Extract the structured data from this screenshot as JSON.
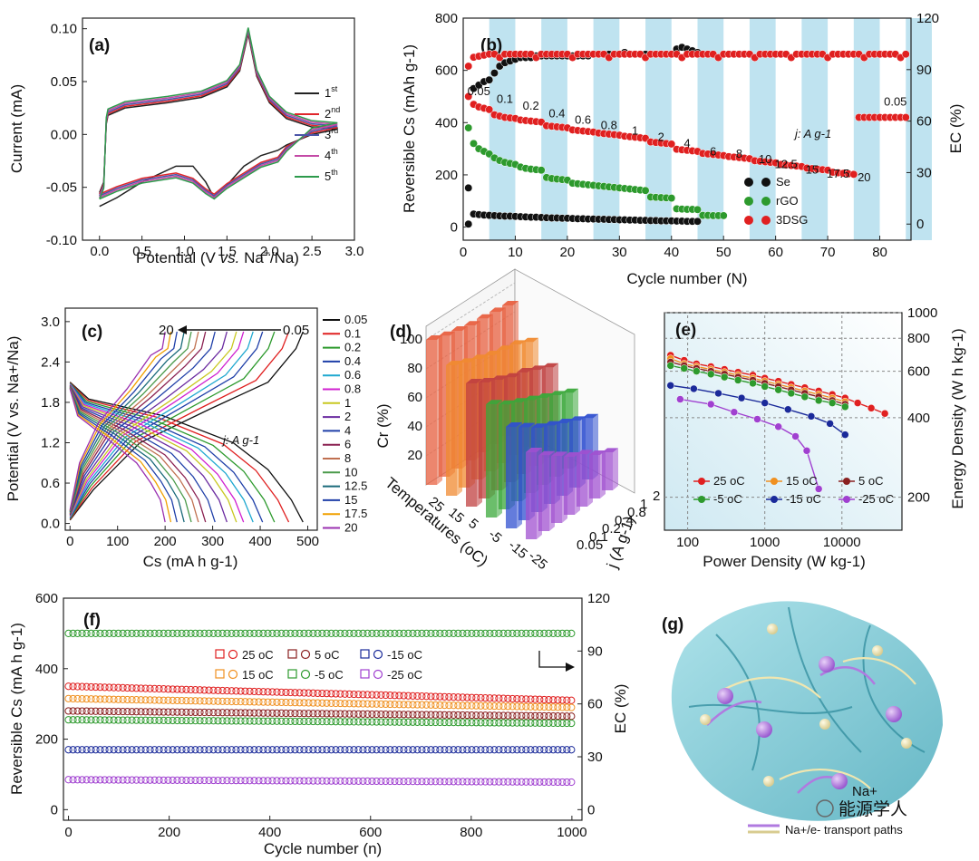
{
  "chart_data": [
    {
      "id": "a",
      "type": "line",
      "panel_label": "(a)",
      "xlabel": "Potential (V vs. Na+/Na)",
      "xlabel_parts": [
        "Potential (V ",
        "vs.",
        " Na",
        "+",
        "/Na)"
      ],
      "ylabel": "Current (mA)",
      "xlim": [
        -0.2,
        3.0
      ],
      "ylim": [
        -0.1,
        0.11
      ],
      "xticks": [
        "0.0",
        "0.5",
        "1.0",
        "1.5",
        "2.0",
        "2.5",
        "3.0"
      ],
      "yticks": [
        "-0.10",
        "-0.05",
        "0.00",
        "0.05",
        "0.10"
      ],
      "legend": [
        {
          "label": "1",
          "sup": "st",
          "color": "#222222"
        },
        {
          "label": "2",
          "sup": "nd",
          "color": "#e0262b"
        },
        {
          "label": "3",
          "sup": "rd",
          "color": "#4a55a8"
        },
        {
          "label": "4",
          "sup": "th",
          "color": "#c44aa6"
        },
        {
          "label": "5",
          "sup": "th",
          "color": "#2d9a4c"
        }
      ]
    },
    {
      "id": "b",
      "type": "scatter",
      "panel_label": "(b)",
      "xlabel": "Cycle number (N)",
      "ylabel": "Reversible Cs (mAh g-1)",
      "y2label": "EC (%)",
      "xlim": [
        0,
        86
      ],
      "ylim": [
        -50,
        800
      ],
      "y2lim": [
        -9.375,
        120
      ],
      "xticks": [
        "0",
        "10",
        "20",
        "30",
        "40",
        "50",
        "60",
        "70",
        "80"
      ],
      "yticks": [
        "0",
        "200",
        "400",
        "600",
        "800"
      ],
      "y2ticks": [
        "0",
        "30",
        "60",
        "90",
        "120"
      ],
      "rate_labels": [
        "0.05",
        "0.1",
        "0.2",
        "0.4",
        "0.6",
        "0.8",
        "1",
        "2",
        "4",
        "6",
        "8",
        "10",
        "12.5",
        "15",
        "17.5",
        "20",
        "0.05"
      ],
      "unit_note": "j: A g-1",
      "legend": [
        {
          "label": "Se",
          "color": "#111111"
        },
        {
          "label": "rGO",
          "color": "#2d9a2d"
        },
        {
          "label": "3DSG",
          "color": "#e02020"
        }
      ],
      "series": [
        {
          "name": "3DSG",
          "values": [
            500,
            470,
            460,
            455,
            450,
            430,
            425,
            420,
            418,
            416,
            410,
            408,
            406,
            404,
            402,
            388,
            386,
            384,
            382,
            380,
            372,
            370,
            368,
            366,
            364,
            360,
            358,
            356,
            354,
            352,
            348,
            346,
            344,
            342,
            340,
            326,
            324,
            322,
            320,
            318,
            298,
            296,
            294,
            292,
            290,
            282,
            280,
            278,
            276,
            274,
            270,
            268,
            266,
            264,
            262,
            254,
            252,
            250,
            248,
            246,
            240,
            238,
            236,
            234,
            232,
            226,
            224,
            222,
            220,
            218,
            210,
            208,
            206,
            204,
            202,
            420,
            420,
            420,
            420,
            420,
            420,
            420,
            420,
            420,
            420
          ]
        },
        {
          "name": "rGO",
          "values": [
            380,
            320,
            300,
            290,
            280,
            265,
            255,
            248,
            244,
            240,
            230,
            225,
            222,
            220,
            218,
            190,
            186,
            184,
            182,
            180,
            168,
            166,
            164,
            162,
            160,
            158,
            156,
            154,
            152,
            150,
            148,
            146,
            144,
            142,
            140,
            115,
            114,
            113,
            112,
            111,
            70,
            69,
            68,
            68,
            67,
            45,
            45,
            44,
            44,
            44
          ]
        },
        {
          "name": "Se",
          "values": [
            150,
            50,
            48,
            46,
            45,
            44,
            43,
            42,
            42,
            41,
            40,
            39,
            38,
            38,
            37,
            36,
            35,
            35,
            34,
            34,
            33,
            32,
            32,
            31,
            31,
            30,
            30,
            29,
            29,
            28,
            28,
            27,
            27,
            26,
            26,
            25,
            25,
            24,
            24,
            24,
            23,
            23,
            22,
            22,
            22
          ]
        },
        {
          "name": "EC_Se",
          "values": [
            0,
            79,
            81,
            83,
            84,
            88,
            92,
            94,
            95,
            96,
            97,
            97,
            97,
            98,
            98,
            98,
            98,
            98,
            98,
            98,
            98,
            98,
            98,
            98,
            99,
            99,
            99,
            99,
            99,
            99,
            100,
            99,
            99,
            99,
            99,
            99,
            99,
            99,
            99,
            99,
            102,
            103,
            102,
            101,
            100
          ]
        }
      ]
    },
    {
      "id": "c",
      "type": "line",
      "panel_label": "(c)",
      "xlabel": "Cs (mA h g-1)",
      "ylabel": "Potential (V vs. Na+/Na)",
      "xlim": [
        -10,
        520
      ],
      "ylim": [
        -0.1,
        3.2
      ],
      "xticks": [
        "0",
        "100",
        "200",
        "300",
        "400",
        "500"
      ],
      "yticks": [
        "0.0",
        "0.6",
        "1.2",
        "1.8",
        "2.4",
        "3.0"
      ],
      "arrow_from": "0.05",
      "arrow_to": "20",
      "unit_note": "j: A g-1",
      "series": [
        {
          "name": "0.05",
          "capacity": 490,
          "color": "#111111"
        },
        {
          "name": "0.1",
          "capacity": 460,
          "color": "#e02020"
        },
        {
          "name": "0.2",
          "capacity": 430,
          "color": "#2d9a2d"
        },
        {
          "name": "0.4",
          "capacity": 405,
          "color": "#1f3fa8"
        },
        {
          "name": "0.6",
          "capacity": 385,
          "color": "#1fa8d0"
        },
        {
          "name": "0.8",
          "capacity": 365,
          "color": "#d020d0"
        },
        {
          "name": "1",
          "capacity": 350,
          "color": "#c8c820"
        },
        {
          "name": "2",
          "capacity": 330,
          "color": "#6a2aa0"
        },
        {
          "name": "4",
          "capacity": 305,
          "color": "#1f3fa8"
        },
        {
          "name": "6",
          "capacity": 285,
          "color": "#8a2050"
        },
        {
          "name": "8",
          "capacity": 270,
          "color": "#c07050"
        },
        {
          "name": "10",
          "capacity": 255,
          "color": "#4a9a4a"
        },
        {
          "name": "12.5",
          "capacity": 240,
          "color": "#1a6a7a"
        },
        {
          "name": "15",
          "capacity": 225,
          "color": "#1f3fa8"
        },
        {
          "name": "17.5",
          "capacity": 212,
          "color": "#f0a000"
        },
        {
          "name": "20",
          "capacity": 200,
          "color": "#9a30b0"
        }
      ]
    },
    {
      "id": "d",
      "type": "bar",
      "panel_label": "(d)",
      "zlabel": "Cr (%)",
      "xlabel": "Temperatures (oC)",
      "ylabel": "j (A g-1)",
      "zticks": [
        "20",
        "40",
        "60",
        "80",
        "100"
      ],
      "temperatures": [
        "25",
        "15",
        "5",
        "-5",
        "-15",
        "-25"
      ],
      "rates": [
        "0.05",
        "0.1",
        "0.2",
        "0.4",
        "0.8",
        "1",
        "2"
      ],
      "colors": [
        "#e86040",
        "#f08a30",
        "#c04040",
        "#3aa83a",
        "#3050d0",
        "#a050d0"
      ],
      "values": [
        [
          100,
          97,
          95,
          93,
          92,
          91,
          90
        ],
        [
          90,
          86,
          83,
          80,
          78,
          76,
          72
        ],
        [
          85,
          80,
          76,
          72,
          70,
          66,
          62
        ],
        [
          78,
          72,
          68,
          64,
          60,
          56,
          52
        ],
        [
          70,
          64,
          58,
          54,
          50,
          46,
          42
        ],
        [
          60,
          52,
          46,
          40,
          36,
          30,
          26
        ]
      ]
    },
    {
      "id": "e",
      "type": "line",
      "panel_label": "(e)",
      "xlabel": "Power Density (W kg-1)",
      "ylabel": "Energy Density (W h kg-1)",
      "xscale": "log",
      "yscale": "log",
      "xlim": [
        50,
        60000
      ],
      "ylim": [
        150,
        1000
      ],
      "xticks": [
        "100",
        "1000",
        "10000"
      ],
      "yticks": [
        "200",
        "400",
        "600",
        "800",
        "1000"
      ],
      "legend": [
        {
          "label": "25 oC",
          "color": "#e02020"
        },
        {
          "label": "15 oC",
          "color": "#f09020"
        },
        {
          "label": "5 oC",
          "color": "#8a2020"
        },
        {
          "label": "-5 oC",
          "color": "#2d9a2d"
        },
        {
          "label": "-15 oC",
          "color": "#1a2a9a"
        },
        {
          "label": "-25 oC",
          "color": "#a040d0"
        }
      ],
      "series": [
        {
          "name": "25 oC",
          "x": [
            60,
            90,
            130,
            200,
            300,
            450,
            700,
            1000,
            1500,
            2200,
            3300,
            5000,
            7500,
            11000,
            16000,
            24000,
            36000
          ],
          "y": [
            690,
            660,
            640,
            625,
            610,
            595,
            580,
            565,
            550,
            535,
            520,
            505,
            490,
            475,
            455,
            435,
            415
          ]
        },
        {
          "name": "15 oC",
          "x": [
            60,
            90,
            130,
            200,
            300,
            450,
            700,
            1000,
            1500,
            2200,
            3300,
            5000,
            7500,
            11000
          ],
          "y": [
            670,
            640,
            625,
            610,
            595,
            580,
            565,
            550,
            535,
            520,
            505,
            490,
            475,
            460
          ]
        },
        {
          "name": "5 oC",
          "x": [
            60,
            90,
            130,
            200,
            300,
            450,
            700,
            1000,
            1500,
            2200,
            3300,
            5000,
            7500,
            11000
          ],
          "y": [
            650,
            630,
            615,
            600,
            585,
            570,
            555,
            540,
            525,
            510,
            495,
            480,
            465,
            450
          ]
        },
        {
          "name": "-5 oC",
          "x": [
            60,
            90,
            130,
            200,
            300,
            450,
            700,
            1000,
            1500,
            2200,
            3300,
            5000,
            7500,
            11000
          ],
          "y": [
            630,
            615,
            600,
            585,
            570,
            555,
            540,
            525,
            510,
            495,
            480,
            465,
            455,
            440
          ]
        },
        {
          "name": "-15 oC",
          "x": [
            60,
            120,
            250,
            500,
            1000,
            2000,
            4000,
            7000,
            11000
          ],
          "y": [
            530,
            515,
            495,
            475,
            455,
            430,
            405,
            380,
            345
          ]
        },
        {
          "name": "-25 oC",
          "x": [
            80,
            200,
            400,
            800,
            1500,
            2500,
            3500,
            5000
          ],
          "y": [
            470,
            450,
            420,
            395,
            370,
            340,
            300,
            215
          ]
        }
      ]
    },
    {
      "id": "f",
      "type": "scatter",
      "panel_label": "(f)",
      "xlabel": "Cycle number (n)",
      "ylabel": "Reversible Cs (mA h g-1)",
      "y2label": "EC (%)",
      "xlim": [
        -10,
        1020
      ],
      "ylim": [
        -30,
        600
      ],
      "y2lim": [
        -6,
        120
      ],
      "xticks": [
        "0",
        "200",
        "400",
        "600",
        "800",
        "1000"
      ],
      "yticks": [
        "0",
        "200",
        "400",
        "600"
      ],
      "y2ticks": [
        "0",
        "30",
        "60",
        "90",
        "120"
      ],
      "legend": [
        {
          "label": "25 oC",
          "color": "#e02020"
        },
        {
          "label": "5 oC",
          "color": "#8a2020"
        },
        {
          "label": "-15 oC",
          "color": "#1a2a9a"
        },
        {
          "label": "15 oC",
          "color": "#f09020"
        },
        {
          "label": "-5 oC",
          "color": "#2d9a2d"
        },
        {
          "label": "-25 oC",
          "color": "#a040d0"
        }
      ],
      "series": [
        {
          "name": "25 oC",
          "start": 350,
          "end": 310
        },
        {
          "name": "15 oC",
          "start": 315,
          "end": 290
        },
        {
          "name": "5 oC",
          "start": 280,
          "end": 265
        },
        {
          "name": "-5 oC",
          "start": 255,
          "end": 245
        },
        {
          "name": "-15 oC",
          "start": 170,
          "end": 170
        },
        {
          "name": "-25 oC",
          "start": 85,
          "end": 78
        },
        {
          "name": "EC",
          "start": 100,
          "end": 100
        }
      ]
    }
  ],
  "illustration": {
    "panel_label": "(g)",
    "ion_label": "Na+",
    "legend_text": "Na+/e- transport paths",
    "watermark": "能源学人"
  }
}
